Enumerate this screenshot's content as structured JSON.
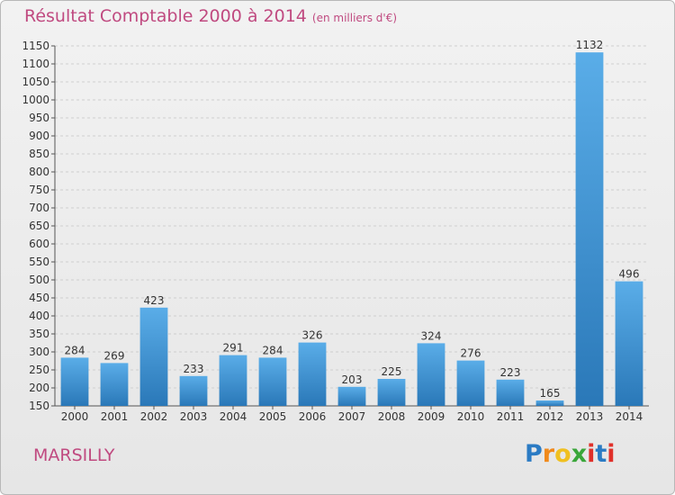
{
  "chart_data": {
    "type": "bar",
    "title": "Résultat Comptable 2000 à 2014",
    "subtitle": "(en milliers d'€)",
    "categories": [
      "2000",
      "2001",
      "2002",
      "2003",
      "2004",
      "2005",
      "2006",
      "2007",
      "2008",
      "2009",
      "2010",
      "2011",
      "2012",
      "2013",
      "2014"
    ],
    "values": [
      284,
      269,
      423,
      233,
      291,
      284,
      326,
      203,
      225,
      324,
      276,
      223,
      165,
      1132,
      496
    ],
    "ylim": [
      150,
      1150
    ],
    "yticks": [
      150,
      200,
      250,
      300,
      350,
      400,
      450,
      500,
      550,
      600,
      650,
      700,
      750,
      800,
      850,
      900,
      950,
      1000,
      1050,
      1100,
      1150
    ],
    "grid": true,
    "xlabel": "",
    "ylabel": ""
  },
  "commune": "MARSILLY",
  "logo": {
    "letters": [
      "P",
      "r",
      "o",
      "x",
      "i",
      "t",
      "i"
    ]
  },
  "colors": {
    "title": "#c04a80",
    "bar_top": "#5aade8",
    "bar_bottom": "#2a78b8",
    "logo": [
      "#2b7bc4",
      "#f08a1c",
      "#f0c020",
      "#3aa63a",
      "#e0302a",
      "#2b7bc4",
      "#e0302a"
    ]
  }
}
